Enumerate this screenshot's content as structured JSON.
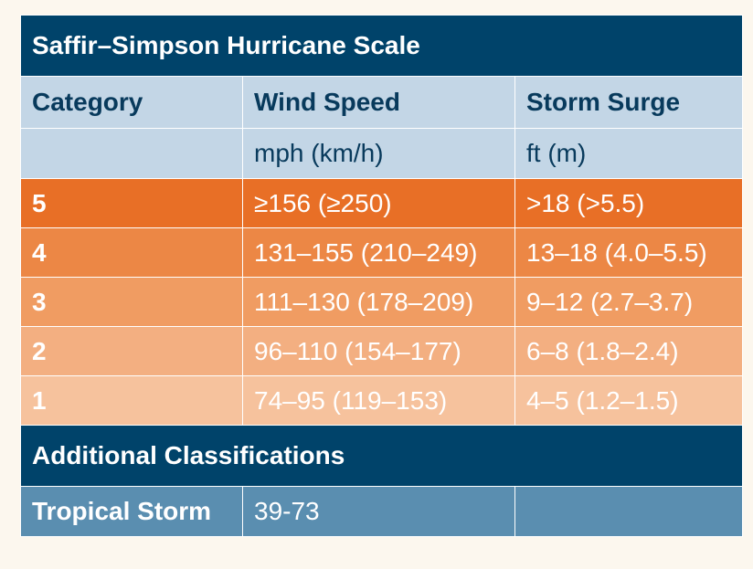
{
  "title": "Saffir–Simpson Hurricane Scale",
  "headers": {
    "category": "Category",
    "wind_speed": "Wind Speed",
    "storm_surge": "Storm Surge"
  },
  "units": {
    "wind_speed": "mph (km/h)",
    "storm_surge": "ft (m)"
  },
  "categories": [
    {
      "category": "5",
      "wind": "≥156 (≥250)",
      "surge": ">18 (>5.5)"
    },
    {
      "category": "4",
      "wind": "131–155 (210–249)",
      "surge": "13–18 (4.0–5.5)"
    },
    {
      "category": "3",
      "wind": "111–130 (178–209)",
      "surge": "9–12 (2.7–3.7)"
    },
    {
      "category": "2",
      "wind": "96–110 (154–177)",
      "surge": "6–8 (1.8–2.4)"
    },
    {
      "category": "1",
      "wind": "74–95 (119–153)",
      "surge": "4–5 (1.2–1.5)"
    }
  ],
  "additional": {
    "title": "Additional Classifications",
    "rows": [
      {
        "label": "Tropical Storm",
        "wind": "39-73",
        "surge": ""
      }
    ]
  },
  "colors": {
    "title_bg": "#00436a",
    "header_bg": "#c3d6e6",
    "header_text": "#083a5c",
    "cat5": "#e86f26",
    "cat4": "#ec8745",
    "cat3": "#f09c62",
    "cat2": "#f3af81",
    "cat1": "#f6c29d",
    "additional_row_bg": "#5a8eb0"
  }
}
